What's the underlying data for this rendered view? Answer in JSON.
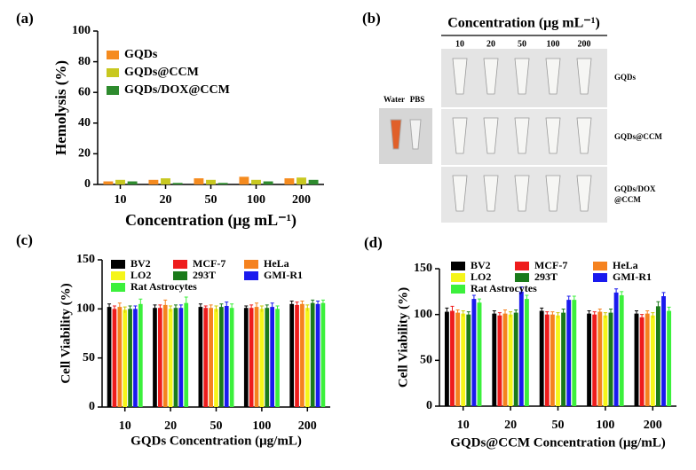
{
  "chart_data": [
    {
      "type": "bar",
      "panel": "(a)",
      "xlabel": "Concentration (μg mL⁻¹)",
      "ylabel": "Hemolysis (%)",
      "categories": [
        "10",
        "20",
        "50",
        "100",
        "200"
      ],
      "ylim": [
        0,
        100
      ],
      "yticks": [
        0,
        20,
        40,
        60,
        80,
        100
      ],
      "series": [
        {
          "name": "GQDs",
          "color": "#f58b1f",
          "values": [
            2,
            3,
            4,
            5,
            4
          ]
        },
        {
          "name": "GQDs@CCM",
          "color": "#c8c820",
          "values": [
            3,
            4,
            3,
            3,
            4.5
          ]
        },
        {
          "name": "GQDs/DOX@CCM",
          "color": "#2e8b2e",
          "values": [
            2,
            1,
            1,
            2,
            3
          ]
        }
      ]
    },
    {
      "type": "bar",
      "panel": "(c)",
      "xlabel": "GQDs Concentration (μg/mL)",
      "ylabel": "Cell Viability (%)",
      "categories": [
        "10",
        "20",
        "50",
        "100",
        "200"
      ],
      "ylim": [
        0,
        150
      ],
      "yticks": [
        0,
        50,
        100,
        150
      ],
      "series": [
        {
          "name": "BV2",
          "color": "#000000",
          "values": [
            102,
            101,
            102,
            101,
            105
          ],
          "errors": [
            3,
            3,
            3,
            2,
            3
          ]
        },
        {
          "name": "MCF-7",
          "color": "#ee1c1c",
          "values": [
            100,
            101,
            101,
            101,
            104
          ],
          "errors": [
            3,
            3,
            2,
            3,
            3
          ]
        },
        {
          "name": "HeLa",
          "color": "#f5821f",
          "values": [
            102,
            104,
            101,
            102,
            105
          ],
          "errors": [
            4,
            5,
            3,
            4,
            3
          ]
        },
        {
          "name": "LO2",
          "color": "#f5f51a",
          "values": [
            99,
            100,
            100,
            100,
            101
          ],
          "errors": [
            3,
            3,
            3,
            3,
            3
          ]
        },
        {
          "name": "293T",
          "color": "#1a7a1a",
          "values": [
            100,
            101,
            102,
            101,
            106
          ],
          "errors": [
            3,
            3,
            3,
            3,
            3
          ]
        },
        {
          "name": "GMI-R1",
          "color": "#1a1aee",
          "values": [
            100,
            101,
            103,
            102,
            105
          ],
          "errors": [
            3,
            3,
            4,
            4,
            3
          ]
        },
        {
          "name": "Rat Astrocytes",
          "color": "#3cf03c",
          "values": [
            105,
            106,
            101,
            100,
            106
          ],
          "errors": [
            5,
            6,
            4,
            3,
            3
          ]
        }
      ]
    },
    {
      "type": "bar",
      "panel": "(d)",
      "xlabel": "GQDs@CCM Concentration (μg/mL)",
      "ylabel": "Cell Viability (%)",
      "categories": [
        "10",
        "20",
        "50",
        "100",
        "200"
      ],
      "ylim": [
        0,
        150
      ],
      "yticks": [
        0,
        50,
        100,
        150
      ],
      "series": [
        {
          "name": "BV2",
          "color": "#000000",
          "values": [
            103,
            101,
            104,
            101,
            101
          ],
          "errors": [
            4,
            3,
            3,
            3,
            3
          ]
        },
        {
          "name": "MCF-7",
          "color": "#ee1c1c",
          "values": [
            104,
            99,
            100,
            100,
            97
          ],
          "errors": [
            5,
            3,
            3,
            3,
            3
          ]
        },
        {
          "name": "HeLa",
          "color": "#f5821f",
          "values": [
            102,
            101,
            100,
            103,
            101
          ],
          "errors": [
            3,
            4,
            3,
            3,
            3
          ]
        },
        {
          "name": "LO2",
          "color": "#f5f51a",
          "values": [
            101,
            100,
            99,
            99,
            99
          ],
          "errors": [
            3,
            3,
            3,
            3,
            3
          ]
        },
        {
          "name": "293T",
          "color": "#1a7a1a",
          "values": [
            100,
            102,
            102,
            102,
            109
          ],
          "errors": [
            3,
            3,
            4,
            4,
            5
          ]
        },
        {
          "name": "GMI-R1",
          "color": "#1a1aee",
          "values": [
            117,
            125,
            116,
            124,
            120
          ],
          "errors": [
            4,
            5,
            4,
            4,
            4
          ]
        },
        {
          "name": "Rat Astrocytes",
          "color": "#3cf03c",
          "values": [
            113,
            117,
            116,
            121,
            104
          ],
          "errors": [
            4,
            4,
            4,
            4,
            4
          ]
        }
      ]
    }
  ],
  "photo_panel": {
    "panel": "(b)",
    "title": "Concentration (μg mL⁻¹)",
    "concentrations": [
      "10",
      "20",
      "50",
      "100",
      "200"
    ],
    "controls": [
      "Water",
      "PBS"
    ],
    "rows": [
      "GQDs",
      "GQDs@CCM",
      "GQDs/DOX\n@CCM"
    ]
  }
}
